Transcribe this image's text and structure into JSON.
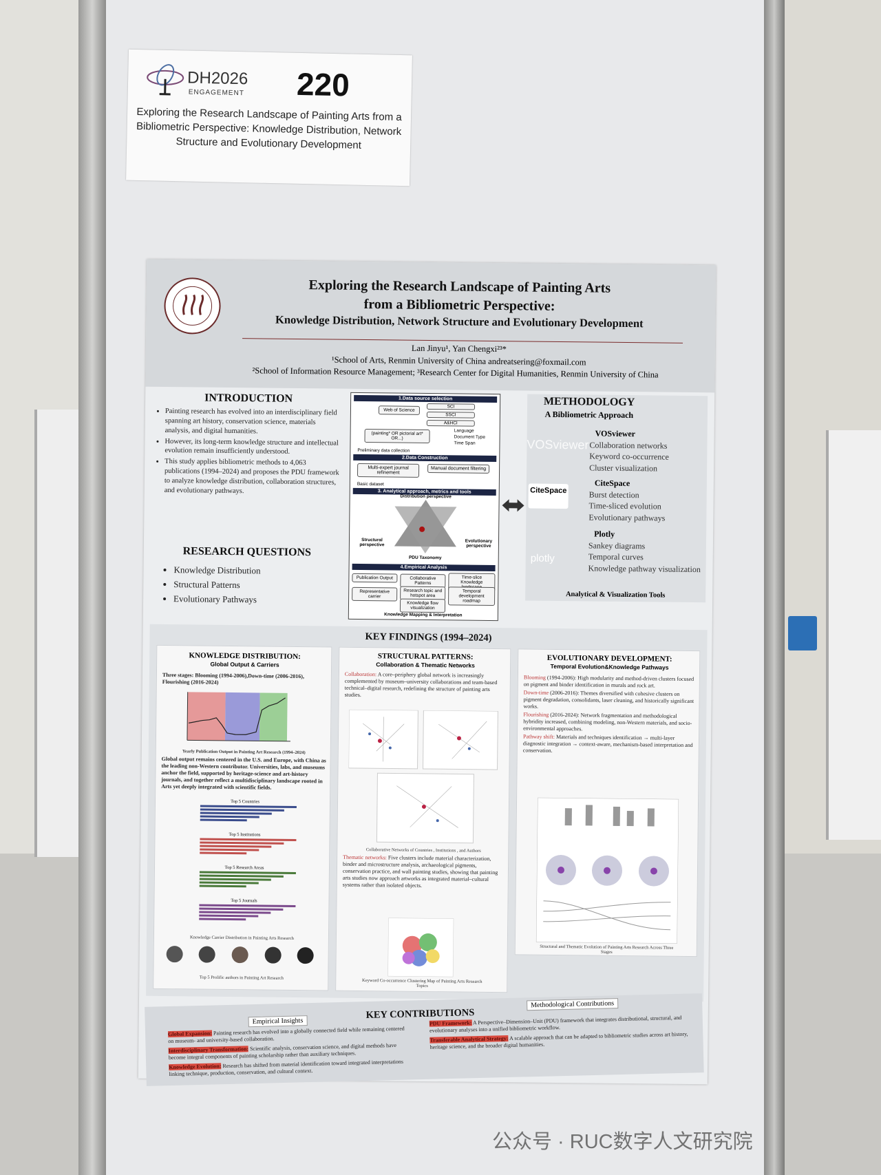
{
  "header_card": {
    "logo": "DH2026",
    "logo_sub": "ENGAGEMENT",
    "number": "220",
    "title": "Exploring the Research Landscape of Painting Arts from a Bibliometric Perspective: Knowledge Distribution, Network Structure and Evolutionary Development"
  },
  "poster": {
    "title_lines": [
      "Exploring the Research Landscape of Painting Arts",
      "from a Bibliometric Perspective:",
      "Knowledge Distribution, Network Structure and Evolutionary Development"
    ],
    "authors": "Lan Jinyu¹, Yan Chengxi²³*",
    "affiliations": [
      "¹School of Arts, Renmin University of China   andreatsering@foxmail.com",
      "²School of Information Resource Management; ³Research Center for Digital Humanities, Renmin University of China"
    ],
    "introduction": {
      "heading": "INTRODUCTION",
      "bullets": [
        "Painting research has evolved into an interdisciplinary field spanning art history, conservation science, materials analysis, and digital humanities.",
        "However, its long-term knowledge structure and intellectual evolution remain insufficiently understood.",
        "This study applies bibliometric methods to 4,063 publications (1994–2024) and proposes the PDU framework to analyze knowledge distribution, collaboration structures, and evolutionary pathways."
      ]
    },
    "research_questions": {
      "heading": "RESEARCH QUESTIONS",
      "items": [
        "Knowledge Distribution",
        "Structural Patterns",
        "Evolutionary Pathways"
      ]
    },
    "workflow": {
      "steps": [
        "1.Data source selection",
        "2.Data Construction",
        "3. Analytical approach, metrics and tools",
        "4.Empirical Analysis"
      ],
      "source": "Web of Science",
      "indexes": [
        "SCI",
        "SSCI",
        "A&HCI"
      ],
      "query": "(painting* OR pictorial art* OR...)",
      "filters": [
        "Language",
        "Document Type",
        "Time Span"
      ],
      "preliminary": "Preliminary data collection",
      "construction": [
        "Multi-expert journal refinement",
        "Manual document filtering"
      ],
      "basic": "Basic dataset",
      "perspectives": [
        "Distribution perspective",
        "Structural perspective",
        "Evolutionary perspective"
      ],
      "taxonomy": "PDU Taxonomy",
      "analysis": [
        "Publication Output",
        "Collaborative Patterns",
        "Time-slice Knowledge landscape",
        "Representative carrier",
        "Research topic and hotspot area",
        "Temporal development roadmap",
        "Knowledge flow visualization"
      ],
      "footer": "Knowledge Mapping & Interpretation"
    },
    "methodology": {
      "heading": "METHODOLOGY",
      "subtitle": "A Bibliometric Approach",
      "tools": [
        {
          "name": "VOSviewer",
          "items": [
            "Collaboration networks",
            "Keyword co-occurrence",
            "Cluster visualization"
          ]
        },
        {
          "name": "CiteSpace",
          "items": [
            "Burst detection",
            "Time-sliced evolution",
            "Evolutionary pathways"
          ]
        },
        {
          "name": "Plotly",
          "items": [
            "Sankey diagrams",
            "Temporal curves",
            "Knowledge pathway visualization"
          ]
        }
      ],
      "footer": "Analytical & Visualization Tools"
    },
    "key_findings": {
      "heading": "KEY FINDINGS (1994–2024)",
      "distribution": {
        "title": "KNOWLEDGE DISTRIBUTION:",
        "subtitle": "Global Output & Carriers",
        "stages": "Three stages: Blooming (1994-2006),Down-time (2006-2016), Flourishing (2016-2024)",
        "chart_caption": "Yearly Publication Output in Painting Art Research (1994–2024)",
        "text": "Global output remains centered in the U.S. and Europe, with China as the leading non-Western contributor. Universities, labs, and museums anchor the field, supported by heritage-science and art-history journals, and together reflect a multidisciplinary landscape rooted in Arts yet deeply integrated with scientific fields.",
        "bar_captions": [
          "Top 5 Countries",
          "Top 5 Institutions",
          "Top 5 Research Areas",
          "Top 5 Journals"
        ],
        "carrier_caption": "Knowledge Carrier Distribution in Painting Arts Research",
        "authors_caption": "Top 5 Prolific authors in Painting Art Research"
      },
      "structural": {
        "title": "STRUCTURAL PATTERNS:",
        "subtitle": "Collaboration & Thematic Networks",
        "collab_label": "Collaboration:",
        "collab_text": "A core–periphery global network is increasingly complemented by museum–university collaborations and team-based technical–digital research, redefining the structure of painting arts studies.",
        "network_caption": "Collaborative Networks of Countries , Institutions , and Authors",
        "thematic_label": "Thematic networks:",
        "thematic_text": "Five clusters include material characterization, binder and microstructure analysis, archaeological pigments, conservation practice, and wall painting studies,  showing that painting arts studies now approach artworks as integrated material–cultural systems rather than isolated objects.",
        "cluster_caption": "Keyword Co-occurrence Clustering Map of Painting Arts Research Topics"
      },
      "evolutionary": {
        "title": "EVOLUTIONARY DEVELOPMENT:",
        "subtitle": "Temporal Evolution&Knowledge Pathways",
        "items": [
          {
            "label": "Blooming",
            "text": "(1994-2006): High modularity and method-driven clusters focused on pigment and binder identification in murals and rock art."
          },
          {
            "label": "Down-time",
            "text": "(2006-2016): Themes diversified with cohesive clusters on pigment degradation, consolidants, laser cleaning, and historically significant works."
          },
          {
            "label": "Flourishing",
            "text": "(2016-2024): Network fragmentation and methodological hybridity increased, combining modeling, non-Western materials, and socio-environmental approaches."
          },
          {
            "label": "Pathway shift:",
            "text": "Materials and techniques identification → multi-layer diagnostic integration → context-aware, mechanism-based interpretation and conservation."
          }
        ],
        "caption": "Structural and Thematic Evolution of Painting Arts Research Across Three Stages"
      }
    },
    "contributions": {
      "heading": "KEY CONTRIBUTIONS",
      "empirical_label": "Empirical Insights",
      "empirical": [
        {
          "label": "Global Expansion:",
          "text": "Painting research has evolved into a globally connected field while remaining centered on museum- and university-based collaboration."
        },
        {
          "label": "Interdisciplinary Transformation:",
          "text": "Scientific analysis, conservation science, and digital methods have become integral components of painting scholarship rather than auxiliary techniques."
        },
        {
          "label": "Knowledge Evolution:",
          "text": "Research has shifted from material identification toward integrated interpretations linking technique, production, conservation, and cultural context."
        }
      ],
      "methodological_label": "Methodological Contributions",
      "methodological": [
        {
          "label": "PDU Framework:",
          "text": "A Perspective–Dimension–Unit (PDU) framework that integrates distributional, structural, and evolutionary analyses into a unified bibliometric workflow."
        },
        {
          "label": "Transferable Analytical Strategy:",
          "text": "A scalable approach that can be adapted to bibliometric studies across art history, heritage science, and the broader digital humanities."
        }
      ]
    }
  },
  "watermark": "公众号 · RUC数字人文研究院"
}
